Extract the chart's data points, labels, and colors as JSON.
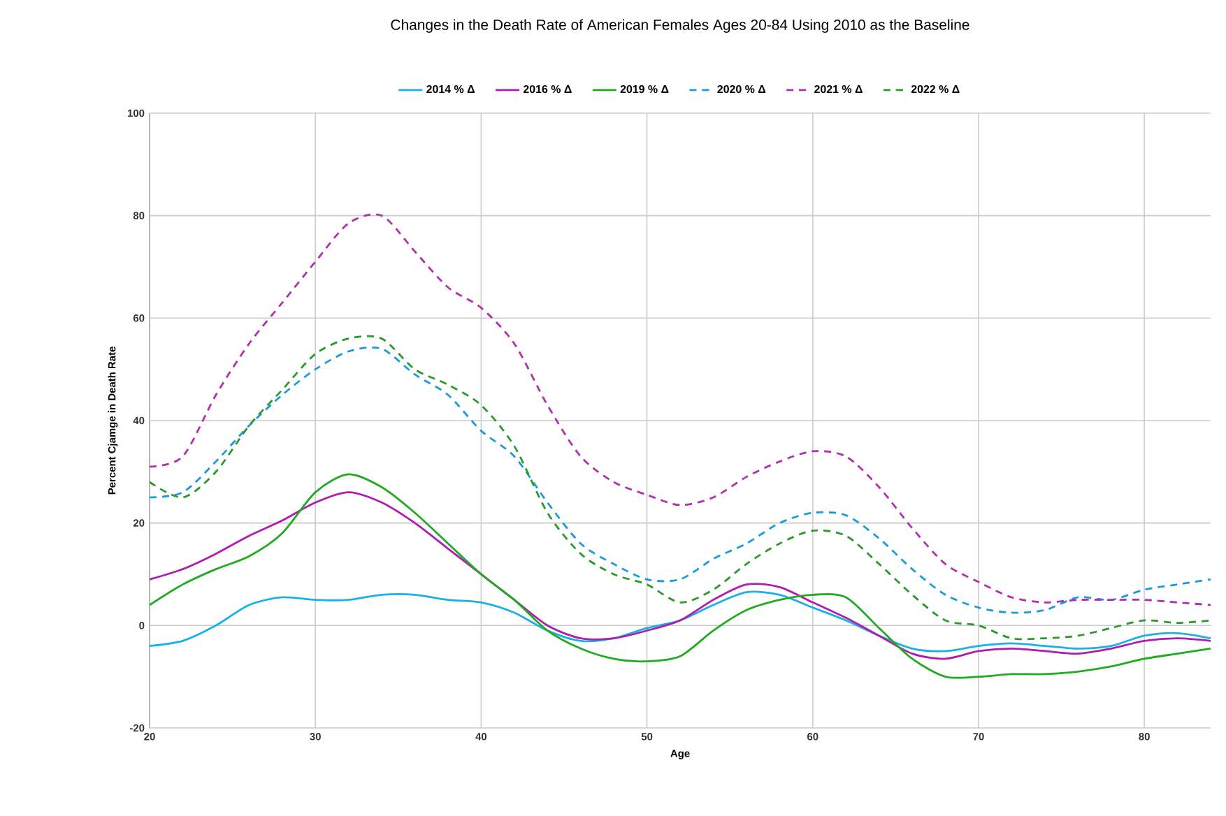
{
  "chart_data": {
    "type": "line",
    "title": "Changes in the Death Rate of American Females Ages 20-84 Using 2010 as the Baseline",
    "xlabel": "Age",
    "ylabel": "Percent Cjamge in Death Rate",
    "x": [
      20,
      22,
      24,
      26,
      28,
      30,
      32,
      34,
      36,
      38,
      40,
      42,
      44,
      46,
      48,
      50,
      52,
      54,
      56,
      58,
      60,
      62,
      64,
      66,
      68,
      70,
      72,
      74,
      76,
      78,
      80,
      82,
      84
    ],
    "series": [
      {
        "name": "2014 % Δ",
        "color": "#1ab0e8",
        "line_style": "solid",
        "values": [
          -4,
          -3,
          0,
          4,
          5.5,
          5,
          5,
          6,
          6,
          5,
          4.5,
          2.5,
          -1,
          -3,
          -2.5,
          -0.5,
          1,
          4,
          6.5,
          6,
          3.5,
          1,
          -2,
          -4.5,
          -5,
          -4,
          -3.5,
          -4,
          -4.5,
          -4,
          -2,
          -1.5,
          -2.5
        ]
      },
      {
        "name": "2016 % Δ",
        "color": "#b01cb0",
        "line_style": "solid",
        "values": [
          9,
          11,
          14,
          17.5,
          20.5,
          24,
          26,
          24,
          20,
          15,
          10,
          5,
          0,
          -2.5,
          -2.5,
          -1,
          1,
          5,
          8,
          7.5,
          4.5,
          1.5,
          -2,
          -5.5,
          -6.5,
          -5,
          -4.5,
          -5,
          -5.5,
          -4.5,
          -3,
          -2.5,
          -3
        ]
      },
      {
        "name": "2019 % Δ",
        "color": "#22aa22",
        "line_style": "solid",
        "values": [
          4,
          8,
          11,
          13.5,
          18,
          26,
          29.5,
          27,
          22,
          16,
          10,
          5,
          -1,
          -4.5,
          -6.5,
          -7,
          -6,
          -1,
          3,
          5,
          6,
          5.5,
          -0.5,
          -6.5,
          -10,
          -10,
          -9.5,
          -9.5,
          -9,
          -8,
          -6.5,
          -5.5,
          -4.5
        ]
      },
      {
        "name": "2020 % Δ",
        "color": "#1a9ae0",
        "line_style": "dashed",
        "values": [
          25,
          26,
          32,
          39,
          45,
          50,
          53.5,
          54,
          49,
          45,
          38,
          33,
          24,
          16,
          12,
          9,
          9,
          13,
          16,
          20,
          22,
          21.5,
          17,
          11,
          6,
          3.5,
          2.5,
          3,
          5.5,
          5,
          7,
          8,
          9
        ]
      },
      {
        "name": "2021 % Δ",
        "color": "#b030b0",
        "line_style": "dashed",
        "values": [
          31,
          33,
          45,
          55,
          63,
          71,
          78.5,
          80,
          73,
          66,
          62,
          55,
          43,
          33,
          28,
          25.5,
          23.5,
          25,
          29,
          32,
          34,
          33,
          27,
          19,
          12,
          8.5,
          5.5,
          4.5,
          5,
          5,
          5,
          4.5,
          4
        ]
      },
      {
        "name": "2022 % Δ",
        "color": "#2a9a2a",
        "line_style": "dashed",
        "values": [
          28,
          25,
          30,
          39,
          46,
          53,
          56,
          56,
          50,
          47,
          43,
          35,
          22,
          14,
          10,
          8,
          4.5,
          7,
          12,
          16,
          18.5,
          17.5,
          12,
          6,
          1,
          0,
          -2.5,
          -2.5,
          -2,
          -0.5,
          1,
          0.5,
          1
        ]
      }
    ],
    "xlim": [
      20,
      84
    ],
    "xticks": [
      20,
      30,
      40,
      50,
      60,
      70,
      80
    ],
    "ylim": [
      -20,
      100
    ],
    "yticks": [
      -20,
      0,
      20,
      40,
      60,
      80,
      100
    ],
    "grid": true,
    "legend": "top",
    "marker": "none"
  }
}
